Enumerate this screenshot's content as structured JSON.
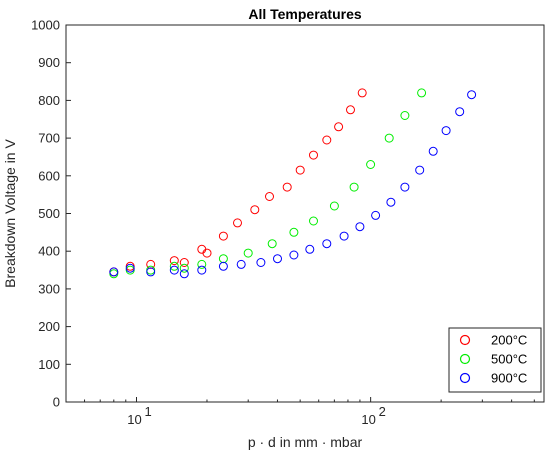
{
  "chart_data": {
    "type": "scatter",
    "title": "All Temperatures",
    "xlabel": "p · d in mm · mbar",
    "ylabel": "Breakdown Voltage in V",
    "x_scale": "log",
    "xlim": [
      5,
      550
    ],
    "ylim": [
      0,
      1000
    ],
    "x_ticks": [
      10,
      100
    ],
    "x_tick_labels": [
      {
        "base": "10",
        "exp": "1"
      },
      {
        "base": "10",
        "exp": "2"
      }
    ],
    "y_ticks": [
      0,
      100,
      200,
      300,
      400,
      500,
      600,
      700,
      800,
      900,
      1000
    ],
    "y_tick_labels": [
      "0",
      "100",
      "200",
      "300",
      "400",
      "500",
      "600",
      "700",
      "800",
      "900",
      "1000"
    ],
    "grid": false,
    "legend_position": "bottom-right",
    "series": [
      {
        "name": "200°C",
        "color": "#ff0000",
        "x": [
          8,
          9.4,
          11.5,
          14.5,
          16,
          19,
          20,
          23.5,
          27,
          32,
          37,
          44,
          50,
          57,
          65,
          73,
          82,
          92
        ],
        "y": [
          345,
          360,
          365,
          375,
          370,
          405,
          395,
          440,
          475,
          510,
          545,
          570,
          615,
          655,
          695,
          730,
          775,
          820
        ]
      },
      {
        "name": "500°C",
        "color": "#00ee00",
        "x": [
          8,
          9.4,
          11.5,
          14.5,
          16,
          19,
          23.5,
          30,
          38,
          47,
          57,
          70,
          85,
          100,
          120,
          140,
          165
        ],
        "y": [
          340,
          350,
          350,
          360,
          355,
          365,
          380,
          395,
          420,
          450,
          480,
          520,
          570,
          630,
          700,
          760,
          820
        ]
      },
      {
        "name": "900°C",
        "color": "#0000ff",
        "x": [
          8,
          9.4,
          11.5,
          14.5,
          16,
          19,
          23.5,
          28,
          34,
          40,
          47,
          55,
          65,
          77,
          90,
          105,
          122,
          140,
          162,
          185,
          210,
          240,
          270
        ],
        "y": [
          345,
          355,
          345,
          350,
          340,
          350,
          360,
          365,
          370,
          380,
          390,
          405,
          420,
          440,
          465,
          495,
          530,
          570,
          615,
          665,
          720,
          770,
          815
        ]
      }
    ]
  }
}
